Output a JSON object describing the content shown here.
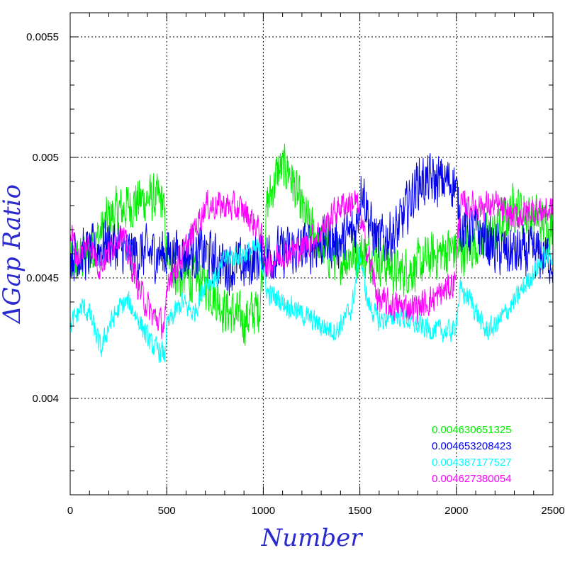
{
  "chart_data": {
    "type": "line",
    "title": "",
    "xlabel": "Number",
    "ylabel": "ΔGap Ratio",
    "xlim": [
      0,
      2500
    ],
    "ylim": [
      0.0036,
      0.0056
    ],
    "x_ticks": [
      0,
      500,
      1000,
      1500,
      2000,
      2500
    ],
    "x_tick_labels": [
      "0",
      "500",
      "1000",
      "1500",
      "2000",
      "2500"
    ],
    "y_ticks": [
      0.004,
      0.0045,
      0.005,
      0.0055
    ],
    "y_tick_labels": [
      "0.004",
      "0.0045",
      "0.005",
      "0.0055"
    ],
    "grid": true,
    "grid_style": "dotted",
    "legend_position": "bottom-right",
    "noise_note": "values are local means; traces fluctuate strongly around them",
    "series": [
      {
        "label": "0.004630651325",
        "color": "#00ee00",
        "x_end": 2500,
        "noise": 0.00013,
        "points": [
          [
            0,
            0.00455
          ],
          [
            100,
            0.0046
          ],
          [
            200,
            0.00475
          ],
          [
            300,
            0.0048
          ],
          [
            400,
            0.00483
          ],
          [
            480,
            0.00482
          ],
          [
            500,
            0.0046
          ],
          [
            560,
            0.0045
          ],
          [
            640,
            0.0045
          ],
          [
            700,
            0.00448
          ],
          [
            800,
            0.00437
          ],
          [
            900,
            0.00432
          ],
          [
            980,
            0.00438
          ],
          [
            1020,
            0.0048
          ],
          [
            1080,
            0.00495
          ],
          [
            1130,
            0.00495
          ],
          [
            1200,
            0.00478
          ],
          [
            1300,
            0.00462
          ],
          [
            1400,
            0.00458
          ],
          [
            1480,
            0.0046
          ],
          [
            1520,
            0.0046
          ],
          [
            1600,
            0.00458
          ],
          [
            1700,
            0.00452
          ],
          [
            1800,
            0.00455
          ],
          [
            1900,
            0.0046
          ],
          [
            1990,
            0.00462
          ],
          [
            2020,
            0.0046
          ],
          [
            2100,
            0.00465
          ],
          [
            2200,
            0.00468
          ],
          [
            2300,
            0.0048
          ],
          [
            2400,
            0.00475
          ],
          [
            2500,
            0.0047
          ]
        ]
      },
      {
        "label": "0.004653208423",
        "color": "#0000ee",
        "x_end": 2500,
        "noise": 0.00014,
        "points": [
          [
            0,
            0.0046
          ],
          [
            100,
            0.0046
          ],
          [
            200,
            0.00465
          ],
          [
            300,
            0.0046
          ],
          [
            400,
            0.0046
          ],
          [
            500,
            0.0046
          ],
          [
            600,
            0.0046
          ],
          [
            700,
            0.0046
          ],
          [
            800,
            0.00455
          ],
          [
            900,
            0.00455
          ],
          [
            1000,
            0.0046
          ],
          [
            1100,
            0.0046
          ],
          [
            1200,
            0.00462
          ],
          [
            1300,
            0.00465
          ],
          [
            1400,
            0.00465
          ],
          [
            1480,
            0.0047
          ],
          [
            1510,
            0.0049
          ],
          [
            1560,
            0.0047
          ],
          [
            1600,
            0.00465
          ],
          [
            1700,
            0.0047
          ],
          [
            1800,
            0.0049
          ],
          [
            1900,
            0.0049
          ],
          [
            1990,
            0.0049
          ],
          [
            2030,
            0.0047
          ],
          [
            2100,
            0.0047
          ],
          [
            2200,
            0.00462
          ],
          [
            2300,
            0.0046
          ],
          [
            2400,
            0.0046
          ],
          [
            2500,
            0.00458
          ]
        ]
      },
      {
        "label": "0.004387177527",
        "color": "#00ffff",
        "x_end": 2500,
        "noise": 6e-05,
        "points": [
          [
            0,
            0.0043
          ],
          [
            60,
            0.00438
          ],
          [
            100,
            0.00435
          ],
          [
            160,
            0.0042
          ],
          [
            200,
            0.0043
          ],
          [
            260,
            0.00438
          ],
          [
            300,
            0.0044
          ],
          [
            360,
            0.00432
          ],
          [
            420,
            0.00422
          ],
          [
            490,
            0.00418
          ],
          [
            500,
            0.0043
          ],
          [
            580,
            0.0044
          ],
          [
            640,
            0.00435
          ],
          [
            700,
            0.00448
          ],
          [
            760,
            0.0045
          ],
          [
            800,
            0.00458
          ],
          [
            900,
            0.0046
          ],
          [
            980,
            0.00462
          ],
          [
            1020,
            0.00444
          ],
          [
            1100,
            0.0044
          ],
          [
            1200,
            0.00435
          ],
          [
            1300,
            0.0043
          ],
          [
            1380,
            0.00428
          ],
          [
            1460,
            0.00438
          ],
          [
            1500,
            0.0046
          ],
          [
            1540,
            0.0044
          ],
          [
            1600,
            0.00432
          ],
          [
            1700,
            0.00435
          ],
          [
            1800,
            0.0043
          ],
          [
            1900,
            0.00428
          ],
          [
            1990,
            0.00428
          ],
          [
            2020,
            0.00445
          ],
          [
            2080,
            0.0044
          ],
          [
            2150,
            0.00428
          ],
          [
            2200,
            0.0043
          ],
          [
            2300,
            0.0044
          ],
          [
            2380,
            0.0045
          ],
          [
            2450,
            0.00458
          ],
          [
            2500,
            0.0046
          ]
        ]
      },
      {
        "label": "0.004627380054",
        "color": "#ff00ff",
        "x_end": 2500,
        "noise": 8e-05,
        "points": [
          [
            0,
            0.0047
          ],
          [
            40,
            0.00458
          ],
          [
            100,
            0.00465
          ],
          [
            150,
            0.00455
          ],
          [
            200,
            0.0046
          ],
          [
            260,
            0.0047
          ],
          [
            300,
            0.0046
          ],
          [
            360,
            0.00445
          ],
          [
            420,
            0.00435
          ],
          [
            490,
            0.0043
          ],
          [
            510,
            0.0045
          ],
          [
            600,
            0.00462
          ],
          [
            700,
            0.0048
          ],
          [
            800,
            0.0048
          ],
          [
            900,
            0.00478
          ],
          [
            980,
            0.0047
          ],
          [
            1020,
            0.00455
          ],
          [
            1100,
            0.0046
          ],
          [
            1200,
            0.00462
          ],
          [
            1300,
            0.0047
          ],
          [
            1400,
            0.0048
          ],
          [
            1480,
            0.00482
          ],
          [
            1520,
            0.00468
          ],
          [
            1600,
            0.0044
          ],
          [
            1700,
            0.00438
          ],
          [
            1800,
            0.00438
          ],
          [
            1900,
            0.00442
          ],
          [
            1990,
            0.00448
          ],
          [
            2020,
            0.0048
          ],
          [
            2100,
            0.0048
          ],
          [
            2200,
            0.0048
          ],
          [
            2300,
            0.00475
          ],
          [
            2400,
            0.00478
          ],
          [
            2500,
            0.00478
          ]
        ]
      }
    ]
  }
}
